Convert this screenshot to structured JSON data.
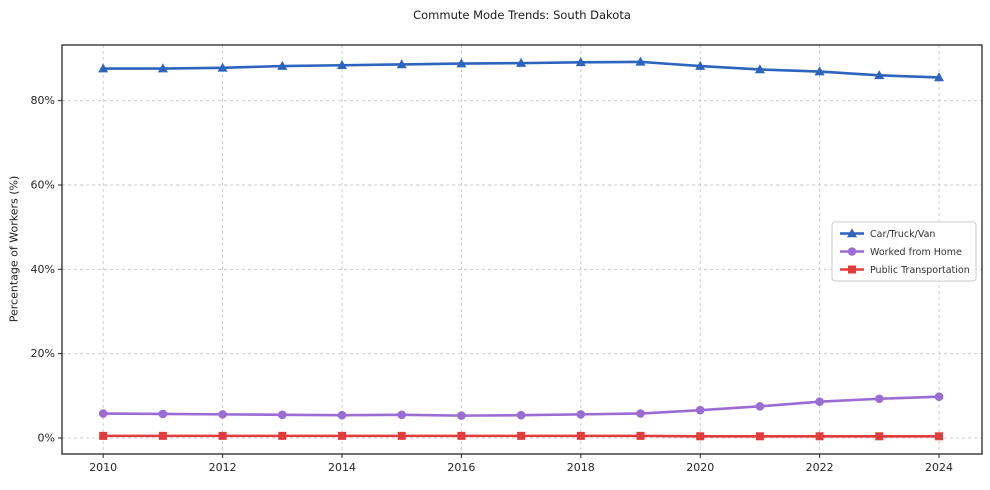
{
  "chart_data": {
    "type": "line",
    "title": "Commute Mode Trends: South Dakota",
    "xlabel": "",
    "ylabel": "Percentage of Workers (%)",
    "x": [
      2010,
      2011,
      2012,
      2013,
      2014,
      2015,
      2016,
      2017,
      2018,
      2019,
      2020,
      2021,
      2022,
      2023,
      2024
    ],
    "x_ticks": [
      2010,
      2012,
      2014,
      2016,
      2018,
      2020,
      2022,
      2024
    ],
    "y_ticks": [
      0,
      20,
      40,
      60,
      80
    ],
    "y_tick_suffix": "%",
    "xlim": [
      2009.31,
      2024.72
    ],
    "ylim": [
      -3.8,
      93.2
    ],
    "grid": true,
    "legend_position": "center-right",
    "series": [
      {
        "name": "Car/Truck/Van",
        "color": "#2d64be",
        "marker": "triangle",
        "values": [
          87.6,
          87.6,
          87.8,
          88.2,
          88.4,
          88.6,
          88.8,
          88.9,
          89.1,
          89.2,
          88.2,
          87.4,
          86.9,
          86.0,
          85.5
        ]
      },
      {
        "name": "Worked from Home",
        "color": "#9a6cd4",
        "marker": "circle",
        "values": [
          5.8,
          5.7,
          5.6,
          5.5,
          5.4,
          5.5,
          5.3,
          5.4,
          5.6,
          5.8,
          6.6,
          7.5,
          8.6,
          9.3,
          9.8
        ]
      },
      {
        "name": "Public Transportation",
        "color": "#e33c3c",
        "marker": "square",
        "values": [
          0.5,
          0.5,
          0.5,
          0.5,
          0.5,
          0.5,
          0.5,
          0.5,
          0.5,
          0.5,
          0.4,
          0.4,
          0.4,
          0.4,
          0.4
        ]
      }
    ]
  }
}
